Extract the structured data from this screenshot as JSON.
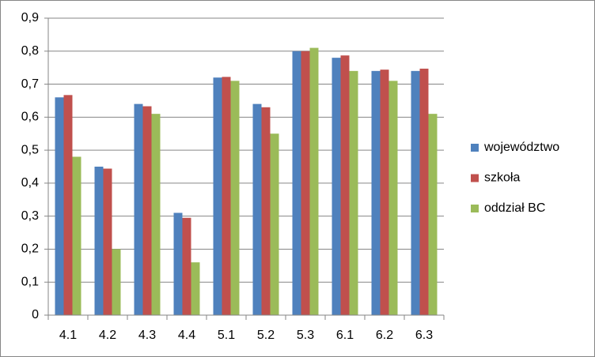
{
  "chart_data": {
    "type": "bar",
    "categories": [
      "4.1",
      "4.2",
      "4.3",
      "4.4",
      "5.1",
      "5.2",
      "5.3",
      "6.1",
      "6.2",
      "6.3"
    ],
    "series": [
      {
        "name": "województwo",
        "color": "#4f81bd",
        "values": [
          0.66,
          0.45,
          0.64,
          0.31,
          0.72,
          0.64,
          0.8,
          0.78,
          0.74,
          0.74
        ]
      },
      {
        "name": "szkoła",
        "color": "#c0504d",
        "values": [
          0.667,
          0.444,
          0.633,
          0.295,
          0.722,
          0.63,
          0.8,
          0.787,
          0.744,
          0.747
        ]
      },
      {
        "name": "oddział BC",
        "color": "#9bbb59",
        "values": [
          0.48,
          0.2,
          0.61,
          0.16,
          0.71,
          0.55,
          0.81,
          0.74,
          0.71,
          0.61
        ]
      }
    ],
    "ylim": [
      0,
      0.9
    ],
    "yticks": [
      0,
      {
        "value": 0.1,
        "label": "0,1"
      },
      {
        "value": 0.2,
        "label": "0,2"
      },
      {
        "value": 0.3,
        "label": "0,3"
      },
      {
        "value": 0.4,
        "label": "0,4"
      },
      {
        "value": 0.5,
        "label": "0,5"
      },
      {
        "value": 0.6,
        "label": "0,6"
      },
      {
        "value": 0.7,
        "label": "0,7"
      },
      {
        "value": 0.8,
        "label": "0,8"
      },
      {
        "value": 0.9,
        "label": "0,9"
      }
    ],
    "grid": true,
    "legend": "right"
  }
}
